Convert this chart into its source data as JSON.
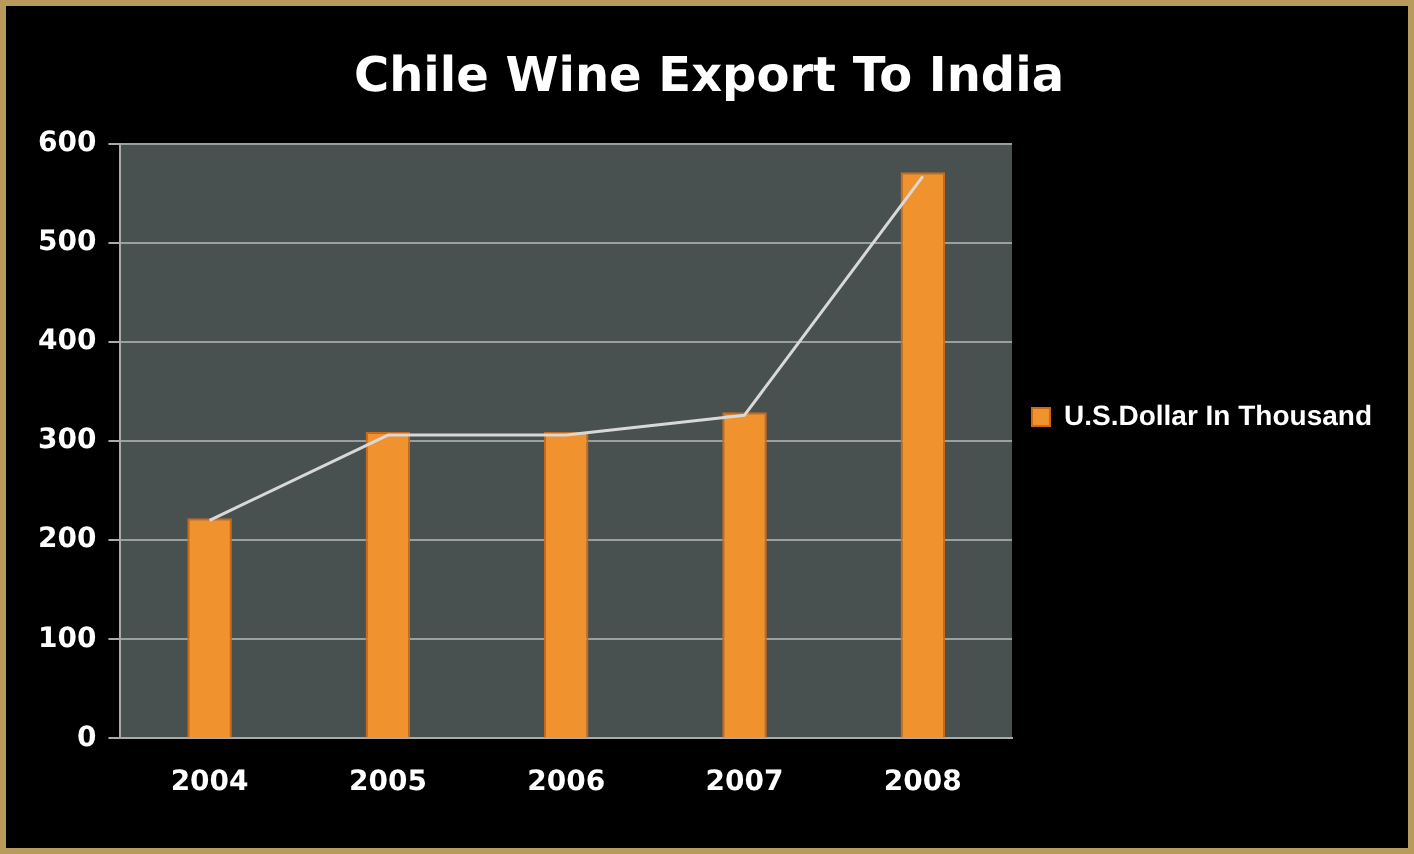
{
  "chart_data": {
    "type": "bar",
    "title": "Chile Wine Export To India",
    "categories": [
      "2004",
      "2005",
      "2006",
      "2007",
      "2008"
    ],
    "series": [
      {
        "name": "U.S.Dollar In Thousand",
        "color": "#f0922e",
        "values": [
          222,
          309,
          309,
          329,
          571
        ]
      },
      {
        "type": "line",
        "color": "#d8d8d8",
        "values": [
          220,
          306,
          306,
          326,
          567
        ]
      }
    ],
    "ylim": [
      0,
      600
    ],
    "yticks": [
      0,
      100,
      200,
      300,
      400,
      500,
      600
    ],
    "grid": "y",
    "legend": "right",
    "marker": "none"
  }
}
